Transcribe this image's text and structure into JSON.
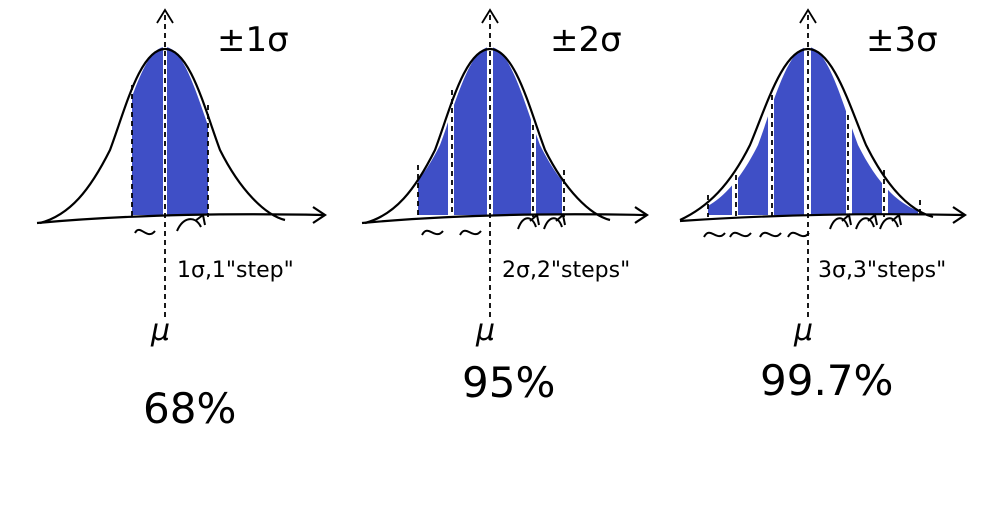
{
  "fill_color": "#3f4fc6",
  "ink_color": "#000000",
  "panels": [
    {
      "title": "±1σ",
      "step_label": "1σ,1\"step\"",
      "mu_label": "μ",
      "percent": "68%",
      "sigma_marks": "σ"
    },
    {
      "title": "±2σ",
      "step_label": "2σ,2\"steps\"",
      "mu_label": "μ",
      "percent": "95%",
      "sigma_marks": "σσ"
    },
    {
      "title": "±3σ",
      "step_label": "3σ,3\"steps\"",
      "mu_label": "μ",
      "percent": "99.7%",
      "sigma_marks": "σσσ"
    }
  ]
}
